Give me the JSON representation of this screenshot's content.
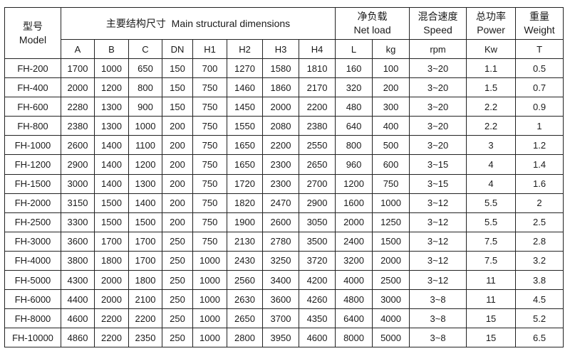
{
  "header": {
    "model": {
      "cn": "型号",
      "en": "Model"
    },
    "dimensions": {
      "cn": "主要结构尺寸",
      "en": "Main structural dimensions"
    },
    "net_load": {
      "cn": "净负载",
      "en": "Net load"
    },
    "speed": {
      "cn": "混合速度",
      "en": "Speed"
    },
    "power": {
      "cn": "总功率",
      "en": "Power"
    },
    "weight": {
      "cn": "重量",
      "en": "Weight"
    },
    "subcolumns": [
      "A",
      "B",
      "C",
      "DN",
      "H1",
      "H2",
      "H3",
      "H4",
      "L",
      "kg",
      "rpm",
      "Kw",
      "T"
    ]
  },
  "rows": [
    [
      "FH-200",
      "1700",
      "1000",
      "650",
      "150",
      "700",
      "1270",
      "1580",
      "1810",
      "160",
      "100",
      "3~20",
      "1.1",
      "0.5"
    ],
    [
      "FH-400",
      "2000",
      "1200",
      "800",
      "150",
      "750",
      "1460",
      "1860",
      "2170",
      "320",
      "200",
      "3~20",
      "1.5",
      "0.7"
    ],
    [
      "FH-600",
      "2280",
      "1300",
      "900",
      "150",
      "750",
      "1450",
      "2000",
      "2200",
      "480",
      "300",
      "3~20",
      "2.2",
      "0.9"
    ],
    [
      "FH-800",
      "2380",
      "1300",
      "1000",
      "200",
      "750",
      "1550",
      "2080",
      "2380",
      "640",
      "400",
      "3~20",
      "2.2",
      "1"
    ],
    [
      "FH-1000",
      "2600",
      "1400",
      "1100",
      "200",
      "750",
      "1650",
      "2200",
      "2550",
      "800",
      "500",
      "3~20",
      "3",
      "1.2"
    ],
    [
      "FH-1200",
      "2900",
      "1400",
      "1200",
      "200",
      "750",
      "1650",
      "2300",
      "2650",
      "960",
      "600",
      "3~15",
      "4",
      "1.4"
    ],
    [
      "FH-1500",
      "3000",
      "1400",
      "1300",
      "200",
      "750",
      "1720",
      "2300",
      "2700",
      "1200",
      "750",
      "3~15",
      "4",
      "1.6"
    ],
    [
      "FH-2000",
      "3150",
      "1500",
      "1400",
      "200",
      "750",
      "1820",
      "2470",
      "2900",
      "1600",
      "1000",
      "3~12",
      "5.5",
      "2"
    ],
    [
      "FH-2500",
      "3300",
      "1500",
      "1500",
      "200",
      "750",
      "1900",
      "2600",
      "3050",
      "2000",
      "1250",
      "3~12",
      "5.5",
      "2.5"
    ],
    [
      "FH-3000",
      "3600",
      "1700",
      "1700",
      "250",
      "750",
      "2130",
      "2780",
      "3500",
      "2400",
      "1500",
      "3~12",
      "7.5",
      "2.8"
    ],
    [
      "FH-4000",
      "3800",
      "1800",
      "1700",
      "250",
      "1000",
      "2430",
      "3250",
      "3720",
      "3200",
      "2000",
      "3~12",
      "7.5",
      "3.2"
    ],
    [
      "FH-5000",
      "4300",
      "2000",
      "1800",
      "250",
      "1000",
      "2560",
      "3400",
      "4200",
      "4000",
      "2500",
      "3~12",
      "11",
      "3.8"
    ],
    [
      "FH-6000",
      "4400",
      "2000",
      "2100",
      "250",
      "1000",
      "2630",
      "3600",
      "4260",
      "4800",
      "3000",
      "3~8",
      "11",
      "4.5"
    ],
    [
      "FH-8000",
      "4600",
      "2200",
      "2200",
      "250",
      "1000",
      "2650",
      "3700",
      "4350",
      "6400",
      "4000",
      "3~8",
      "15",
      "5.2"
    ],
    [
      "FH-10000",
      "4860",
      "2200",
      "2350",
      "250",
      "1000",
      "2800",
      "3950",
      "4600",
      "8000",
      "5000",
      "3~8",
      "15",
      "6.5"
    ]
  ]
}
